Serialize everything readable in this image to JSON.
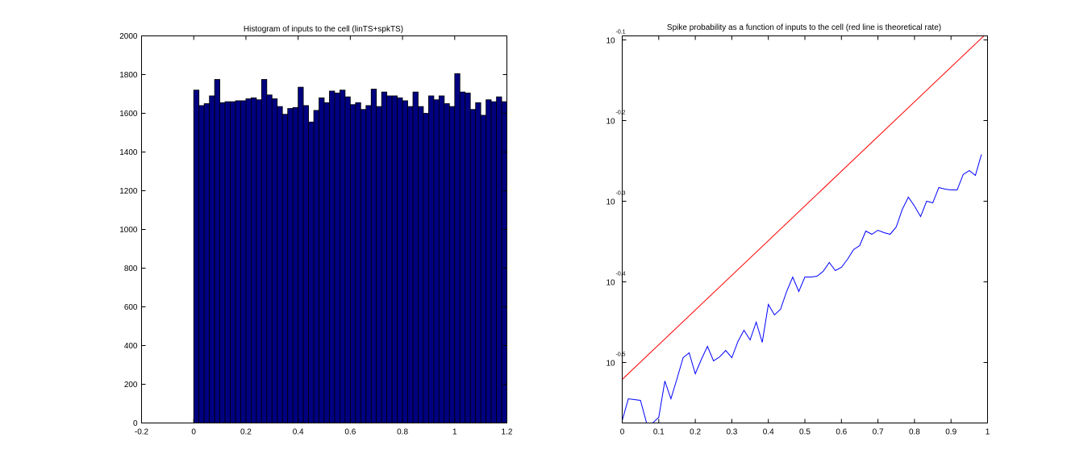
{
  "chart_data": [
    {
      "type": "bar",
      "title": "Histogram of inputs to the cell (linTS+spkTS)",
      "xlabel": "",
      "ylabel": "",
      "xlim": [
        -0.2,
        1.2
      ],
      "ylim": [
        0,
        2000
      ],
      "xticks": [
        "-0.2",
        "0",
        "0.2",
        "0.4",
        "0.6",
        "0.8",
        "1",
        "1.2"
      ],
      "yticks": [
        "0",
        "200",
        "400",
        "600",
        "800",
        "1000",
        "1200",
        "1400",
        "1600",
        "1800",
        "2000"
      ],
      "bar_color": "#000080",
      "bin_start": 0,
      "bin_width": 0.02,
      "values": [
        1720,
        1640,
        1650,
        1690,
        1775,
        1655,
        1660,
        1660,
        1665,
        1665,
        1675,
        1680,
        1670,
        1775,
        1695,
        1675,
        1635,
        1595,
        1625,
        1630,
        1735,
        1640,
        1555,
        1615,
        1680,
        1655,
        1715,
        1705,
        1720,
        1685,
        1645,
        1655,
        1620,
        1640,
        1725,
        1635,
        1710,
        1690,
        1690,
        1680,
        1665,
        1635,
        1710,
        1635,
        1600,
        1690,
        1670,
        1690,
        1650,
        1635,
        1805,
        1710,
        1705,
        1620,
        1655,
        1590,
        1670,
        1660,
        1685,
        1660
      ]
    },
    {
      "type": "line",
      "title": "Spike probability as a function of inputs to the cell (red line is theoretical rate)",
      "xlabel": "",
      "ylabel": "",
      "xlim": [
        0,
        1
      ],
      "ylim_log10": [
        -0.575,
        -0.095
      ],
      "yscale": "log",
      "xticks": [
        "0",
        "0.1",
        "0.2",
        "0.3",
        "0.4",
        "0.5",
        "0.6",
        "0.7",
        "0.8",
        "0.9",
        "1"
      ],
      "yticks": [
        {
          "base": "10",
          "exp": "-0.1"
        },
        {
          "base": "10",
          "exp": "-0.2"
        },
        {
          "base": "10",
          "exp": "-0.3"
        },
        {
          "base": "10",
          "exp": "-0.4"
        },
        {
          "base": "10",
          "exp": "-0.5"
        }
      ],
      "series": [
        {
          "color": "#ff0000",
          "x": [
            0,
            0.99
          ],
          "y_log10": [
            -0.521,
            -0.095
          ]
        },
        {
          "color": "#0000ff",
          "x": [
            0.0,
            0.0167,
            0.0333,
            0.05,
            0.0667,
            0.0833,
            0.1,
            0.1167,
            0.1333,
            0.15,
            0.1667,
            0.1833,
            0.2,
            0.2167,
            0.2333,
            0.25,
            0.2667,
            0.2833,
            0.3,
            0.3167,
            0.3333,
            0.35,
            0.3667,
            0.3833,
            0.4,
            0.4167,
            0.4333,
            0.45,
            0.4667,
            0.4833,
            0.5,
            0.5167,
            0.5333,
            0.55,
            0.5667,
            0.5833,
            0.6,
            0.6167,
            0.6333,
            0.65,
            0.6667,
            0.6833,
            0.7,
            0.7167,
            0.7333,
            0.75,
            0.7667,
            0.7833,
            0.8,
            0.8167,
            0.8333,
            0.85,
            0.8667,
            0.8833,
            0.9,
            0.9167,
            0.9333,
            0.95,
            0.9667,
            0.9833
          ],
          "y_log10": [
            -0.572,
            -0.545,
            -0.546,
            -0.547,
            -0.575,
            -0.575,
            -0.568,
            -0.523,
            -0.545,
            -0.52,
            -0.494,
            -0.488,
            -0.514,
            -0.496,
            -0.48,
            -0.498,
            -0.493,
            -0.485,
            -0.494,
            -0.474,
            -0.46,
            -0.472,
            -0.45,
            -0.475,
            -0.428,
            -0.441,
            -0.434,
            -0.412,
            -0.394,
            -0.412,
            -0.394,
            -0.394,
            -0.393,
            -0.387,
            -0.376,
            -0.386,
            -0.382,
            -0.372,
            -0.36,
            -0.355,
            -0.337,
            -0.341,
            -0.336,
            -0.339,
            -0.341,
            -0.332,
            -0.31,
            -0.295,
            -0.306,
            -0.319,
            -0.3,
            -0.302,
            -0.283,
            -0.285,
            -0.286,
            -0.286,
            -0.267,
            -0.262,
            -0.268,
            -0.242
          ]
        }
      ]
    }
  ]
}
